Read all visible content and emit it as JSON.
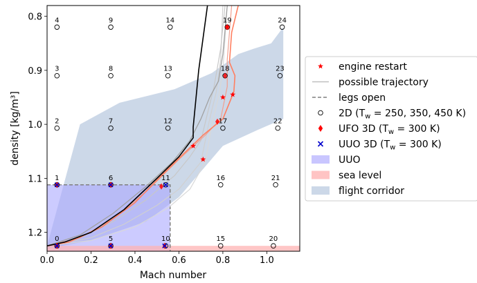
{
  "chart_data": {
    "type": "scatter",
    "xlabel": "Mach number",
    "ylabel": "density [kg/m³]",
    "xlim": [
      0.0,
      1.15
    ],
    "ylim": [
      1.235,
      0.78
    ],
    "y_inverted": true,
    "x_ticks": [
      "0.0",
      "0.2",
      "0.4",
      "0.6",
      "0.8",
      "1.0"
    ],
    "x_tick_values": [
      0.0,
      0.2,
      0.4,
      0.6,
      0.8,
      1.0
    ],
    "y_ticks": [
      "0.8",
      "0.9",
      "1.0",
      "1.1",
      "1.2"
    ],
    "y_tick_values": [
      0.8,
      0.9,
      1.0,
      1.1,
      1.2
    ],
    "legend_position": "outside-right",
    "legend": [
      {
        "label": "engine restart",
        "kind": "star",
        "color": "#ff0000"
      },
      {
        "label": "possible trajectory",
        "kind": "line",
        "color": "#bfbfbf"
      },
      {
        "label": "legs open",
        "kind": "dashline",
        "color": "#7f7f7f"
      },
      {
        "label": "2D (T",
        "sub": "w",
        "rest": " = 250, 350, 450 K)",
        "kind": "circle",
        "color": "#000000"
      },
      {
        "label": "UFO 3D (T",
        "sub": "w",
        "rest": " = 300 K)",
        "kind": "diamond",
        "color": "#ff0000"
      },
      {
        "label": "UUO 3D (T",
        "sub": "w",
        "rest": " = 300 K)",
        "kind": "x",
        "color": "#0000cc"
      },
      {
        "label": "UUO",
        "kind": "patch",
        "color": "#c9c6ff"
      },
      {
        "label": "sea level",
        "kind": "patch",
        "color": "#ffc4c4"
      },
      {
        "label": "flight corridor",
        "kind": "patch",
        "color": "#ccd8e8"
      }
    ],
    "points_2d": [
      {
        "id": "0",
        "x": 0.045,
        "y": 1.225
      },
      {
        "id": "1",
        "x": 0.045,
        "y": 1.112
      },
      {
        "id": "2",
        "x": 0.045,
        "y": 1.007
      },
      {
        "id": "3",
        "x": 0.045,
        "y": 0.91
      },
      {
        "id": "4",
        "x": 0.045,
        "y": 0.82
      },
      {
        "id": "5",
        "x": 0.29,
        "y": 1.225
      },
      {
        "id": "6",
        "x": 0.29,
        "y": 1.112
      },
      {
        "id": "7",
        "x": 0.29,
        "y": 1.007
      },
      {
        "id": "8",
        "x": 0.29,
        "y": 0.91
      },
      {
        "id": "9",
        "x": 0.29,
        "y": 0.82
      },
      {
        "id": "10",
        "x": 0.54,
        "y": 1.225
      },
      {
        "id": "11",
        "x": 0.54,
        "y": 1.112
      },
      {
        "id": "12",
        "x": 0.55,
        "y": 1.007
      },
      {
        "id": "13",
        "x": 0.55,
        "y": 0.91
      },
      {
        "id": "14",
        "x": 0.56,
        "y": 0.82
      },
      {
        "id": "15",
        "x": 0.79,
        "y": 1.225
      },
      {
        "id": "16",
        "x": 0.79,
        "y": 1.112
      },
      {
        "id": "17",
        "x": 0.8,
        "y": 1.007
      },
      {
        "id": "18",
        "x": 0.81,
        "y": 0.91
      },
      {
        "id": "19",
        "x": 0.82,
        "y": 0.82
      },
      {
        "id": "20",
        "x": 1.03,
        "y": 1.225
      },
      {
        "id": "21",
        "x": 1.04,
        "y": 1.112
      },
      {
        "id": "22",
        "x": 1.05,
        "y": 1.007
      },
      {
        "id": "23",
        "x": 1.06,
        "y": 0.91
      },
      {
        "id": "24",
        "x": 1.07,
        "y": 0.82
      }
    ],
    "ufo_3d": [
      {
        "x": 0.045,
        "y": 1.225
      },
      {
        "x": 0.045,
        "y": 1.112
      },
      {
        "x": 0.29,
        "y": 1.112
      },
      {
        "x": 0.29,
        "y": 1.225
      },
      {
        "x": 0.535,
        "y": 1.225
      },
      {
        "x": 0.52,
        "y": 1.115
      },
      {
        "x": 0.775,
        "y": 0.995
      },
      {
        "x": 0.81,
        "y": 0.91
      },
      {
        "x": 0.82,
        "y": 0.82
      }
    ],
    "uuo_3d": [
      {
        "x": 0.045,
        "y": 1.225
      },
      {
        "x": 0.045,
        "y": 1.112
      },
      {
        "x": 0.29,
        "y": 1.112
      },
      {
        "x": 0.29,
        "y": 1.225
      },
      {
        "x": 0.535,
        "y": 1.225
      },
      {
        "x": 0.54,
        "y": 1.112
      }
    ],
    "engine_restart": [
      {
        "x": 0.665,
        "y": 1.04
      },
      {
        "x": 0.71,
        "y": 1.065
      },
      {
        "x": 0.8,
        "y": 0.95
      },
      {
        "x": 0.845,
        "y": 0.945
      },
      {
        "x": 0.82,
        "y": 0.82
      }
    ],
    "uuo_region": {
      "x": [
        0.0,
        0.56
      ],
      "y": [
        1.112,
        1.235
      ]
    },
    "legs_open": {
      "x": [
        0.0,
        0.56
      ],
      "y": [
        1.112,
        1.235
      ]
    },
    "sea_level": {
      "x": [
        0.0,
        1.15
      ],
      "y": [
        1.225,
        1.235
      ]
    },
    "flight_corridor": [
      [
        0.0,
        1.225
      ],
      [
        0.15,
        1.0
      ],
      [
        0.33,
        0.96
      ],
      [
        0.58,
        0.935
      ],
      [
        0.75,
        0.905
      ],
      [
        0.87,
        0.87
      ],
      [
        0.94,
        0.86
      ],
      [
        1.02,
        0.85
      ],
      [
        1.075,
        0.82
      ],
      [
        1.075,
        0.99
      ],
      [
        0.96,
        1.01
      ],
      [
        0.8,
        1.04
      ],
      [
        0.6,
        1.135
      ],
      [
        0.45,
        1.18
      ],
      [
        0.2,
        1.215
      ],
      [
        0.0,
        1.23
      ]
    ],
    "trajectories": [
      {
        "color": "#000000",
        "width": 1.6,
        "points": [
          [
            0.0,
            1.225
          ],
          [
            0.08,
            1.218
          ],
          [
            0.2,
            1.2
          ],
          [
            0.35,
            1.158
          ],
          [
            0.5,
            1.1
          ],
          [
            0.6,
            1.06
          ],
          [
            0.665,
            1.025
          ],
          [
            0.665,
            1.005
          ],
          [
            0.69,
            0.9
          ],
          [
            0.73,
            0.78
          ]
        ]
      },
      {
        "color": "#ff7f60",
        "width": 1.6,
        "points": [
          [
            0.0,
            1.225
          ],
          [
            0.1,
            1.218
          ],
          [
            0.25,
            1.19
          ],
          [
            0.4,
            1.145
          ],
          [
            0.52,
            1.095
          ],
          [
            0.62,
            1.055
          ],
          [
            0.71,
            1.02
          ],
          [
            0.8,
            0.99
          ],
          [
            0.85,
            0.94
          ],
          [
            0.855,
            0.91
          ],
          [
            0.83,
            0.885
          ],
          [
            0.84,
            0.83
          ],
          [
            0.87,
            0.78
          ]
        ]
      },
      {
        "color": "#f0a090",
        "width": 1.2,
        "points": [
          [
            0.0,
            1.225
          ],
          [
            0.15,
            1.21
          ],
          [
            0.3,
            1.175
          ],
          [
            0.45,
            1.125
          ],
          [
            0.6,
            1.065
          ],
          [
            0.72,
            1.02
          ],
          [
            0.79,
            0.99
          ],
          [
            0.82,
            0.93
          ],
          [
            0.82,
            0.88
          ],
          [
            0.84,
            0.78
          ]
        ]
      },
      {
        "color": "#a0a0a0",
        "width": 1.3,
        "points": [
          [
            0.0,
            1.225
          ],
          [
            0.15,
            1.205
          ],
          [
            0.3,
            1.165
          ],
          [
            0.45,
            1.115
          ],
          [
            0.57,
            1.07
          ],
          [
            0.65,
            1.03
          ],
          [
            0.7,
            0.99
          ],
          [
            0.74,
            0.95
          ],
          [
            0.78,
            0.92
          ],
          [
            0.8,
            0.87
          ],
          [
            0.82,
            0.78
          ]
        ]
      },
      {
        "color": "#c8c8c8",
        "width": 1.2,
        "points": [
          [
            0.0,
            1.225
          ],
          [
            0.15,
            1.21
          ],
          [
            0.3,
            1.18
          ],
          [
            0.45,
            1.14
          ],
          [
            0.58,
            1.095
          ],
          [
            0.65,
            1.06
          ],
          [
            0.7,
            1.03
          ],
          [
            0.73,
            0.98
          ],
          [
            0.76,
            0.93
          ],
          [
            0.79,
            0.86
          ],
          [
            0.81,
            0.78
          ]
        ]
      },
      {
        "color": "#d0d0d0",
        "width": 1.2,
        "points": [
          [
            0.0,
            1.225
          ],
          [
            0.2,
            1.21
          ],
          [
            0.35,
            1.185
          ],
          [
            0.5,
            1.15
          ],
          [
            0.6,
            1.12
          ],
          [
            0.7,
            1.07
          ],
          [
            0.74,
            0.99
          ],
          [
            0.77,
            0.94
          ],
          [
            0.79,
            0.88
          ],
          [
            0.8,
            0.78
          ]
        ]
      },
      {
        "color": "#d8d8d8",
        "width": 1.2,
        "points": [
          [
            0.0,
            1.225
          ],
          [
            0.2,
            1.215
          ],
          [
            0.4,
            1.19
          ],
          [
            0.55,
            1.155
          ],
          [
            0.65,
            1.12
          ],
          [
            0.72,
            1.07
          ],
          [
            0.75,
            1.0
          ],
          [
            0.78,
            0.95
          ],
          [
            0.8,
            0.9
          ],
          [
            0.82,
            0.78
          ]
        ]
      }
    ]
  }
}
